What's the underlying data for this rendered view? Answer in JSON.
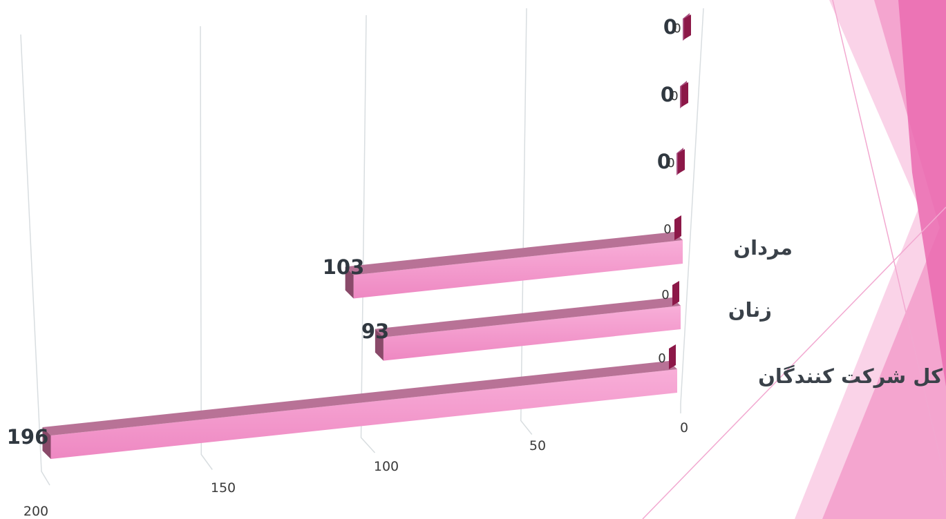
{
  "chart_data": {
    "type": "bar",
    "orientation": "horizontal",
    "perspective": "3d",
    "categories": [
      "کل شرکت کنندگان",
      "زنان",
      "مردان",
      "",
      "",
      ""
    ],
    "series": [
      {
        "values": [
          196,
          93,
          103,
          0,
          0,
          0
        ]
      },
      {
        "values": [
          0,
          0,
          0,
          0,
          0,
          0
        ]
      }
    ],
    "x_axis": {
      "ticks": [
        "0",
        "50",
        "100",
        "150",
        "200"
      ],
      "range": [
        0,
        200
      ],
      "reversed": true
    },
    "grid": true
  },
  "colors": {
    "bar_front_light": "#f8aed8",
    "bar_front": "#f090c8",
    "bar_top": "#b87296",
    "bar_side": "#8a4a6a",
    "small_bar": "#8c1848",
    "small_bar_light": "#a85080",
    "grid": "#d8dde0",
    "axis_text": "#3a3a3a",
    "decor_pink_dark": "#ea6bb0",
    "decor_pink": "#f39ac8",
    "decor_pink_light": "#f8c4e0"
  }
}
